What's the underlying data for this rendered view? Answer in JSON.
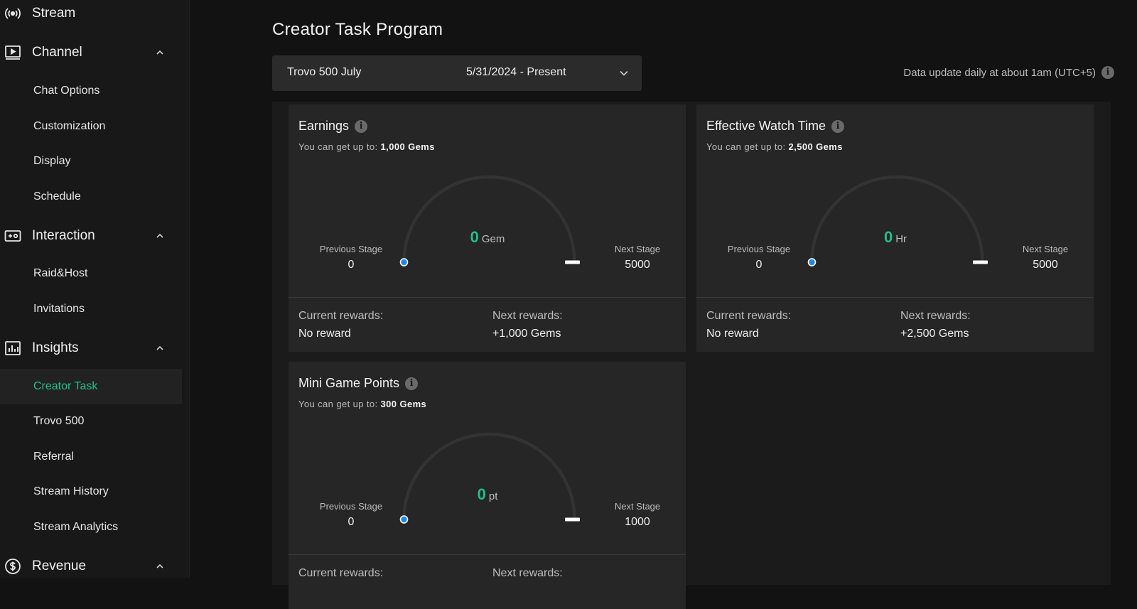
{
  "sidebar": {
    "groups": [
      {
        "label": "Stream",
        "icon": "broadcast-icon"
      },
      {
        "label": "Channel",
        "icon": "play-screen-icon"
      },
      {
        "label": "Interaction",
        "icon": "gamepad-icon"
      },
      {
        "label": "Insights",
        "icon": "bar-chart-icon"
      },
      {
        "label": "Revenue",
        "icon": "dollar-circle-icon"
      }
    ],
    "channel_items": [
      "Chat Options",
      "Customization",
      "Display",
      "Schedule"
    ],
    "interaction_items": [
      "Raid&Host",
      "Invitations"
    ],
    "insights_items": [
      "Creator Task",
      "Trovo 500",
      "Referral",
      "Stream History",
      "Stream Analytics"
    ],
    "active_item": "Creator Task"
  },
  "header": {
    "title": "Creator Task Program",
    "period_select": {
      "name": "Trovo 500 July",
      "range": "5/31/2024 - Present"
    },
    "update_note": "Data update daily at about 1am (UTC+5)"
  },
  "labels": {
    "up_to_prefix": "You can get up to: ",
    "previous_stage": "Previous Stage",
    "next_stage": "Next Stage",
    "current_rewards": "Current rewards:",
    "next_rewards": "Next rewards:"
  },
  "cards": [
    {
      "title": "Earnings",
      "up_to": "1,000 Gems",
      "value": "0",
      "unit": "Gem",
      "previous_stage": "0",
      "next_stage": "5000",
      "current_reward": "No reward",
      "next_reward": "+1,000 Gems",
      "progress": 0
    },
    {
      "title": "Effective Watch Time",
      "up_to": "2,500 Gems",
      "value": "0",
      "unit": "Hr",
      "previous_stage": "0",
      "next_stage": "5000",
      "current_reward": "No reward",
      "next_reward": "+2,500 Gems",
      "progress": 0
    },
    {
      "title": "Mini Game Points",
      "up_to": "300 Gems",
      "value": "0",
      "unit": "pt",
      "previous_stage": "0",
      "next_stage": "1000",
      "current_reward": "",
      "next_reward": "",
      "progress": 0
    }
  ],
  "colors": {
    "accent": "#21c08b",
    "gauge_track": "#333333",
    "gauge_dot": "#1e88e5"
  }
}
